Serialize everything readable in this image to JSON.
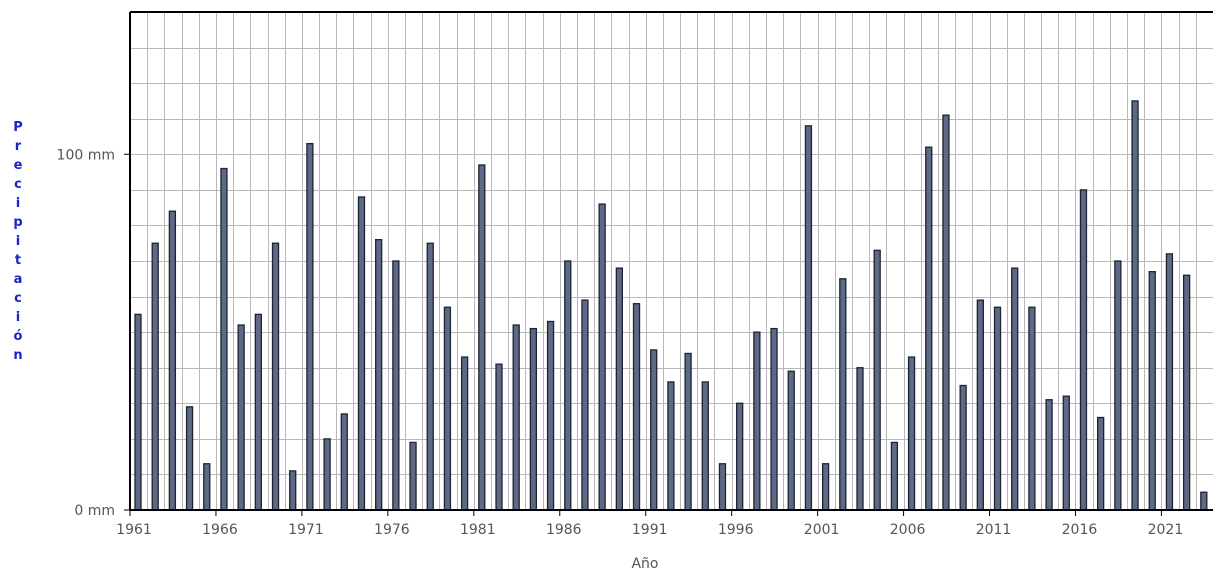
{
  "chart_data": {
    "type": "bar",
    "title": "",
    "xlabel": "Año",
    "ylabel": "Precipitación",
    "unit": "mm",
    "ylim": [
      0,
      140
    ],
    "yticks": [
      {
        "value": 0,
        "label": "0 mm"
      },
      {
        "value": 100,
        "label": "100 mm"
      }
    ],
    "xticks": [
      "1961",
      "1966",
      "1971",
      "1976",
      "1981",
      "1986",
      "1991",
      "1996",
      "2001",
      "2006",
      "2011",
      "2016",
      "2021"
    ],
    "grid": true,
    "legend": "none",
    "colors": {
      "bar_fill": "#5c6a85",
      "bar_stroke": "#1c2433",
      "grid": "#b8b8b8",
      "axis": "#000000",
      "ylabel": "#1a22c8",
      "tick_text": "#555555"
    },
    "x": [
      1961,
      1962,
      1963,
      1964,
      1965,
      1966,
      1967,
      1968,
      1969,
      1970,
      1971,
      1972,
      1973,
      1974,
      1975,
      1976,
      1977,
      1978,
      1979,
      1980,
      1981,
      1982,
      1983,
      1984,
      1985,
      1986,
      1987,
      1988,
      1989,
      1990,
      1991,
      1992,
      1993,
      1994,
      1995,
      1996,
      1997,
      1998,
      1999,
      2000,
      2001,
      2002,
      2003,
      2004,
      2005,
      2006,
      2007,
      2008,
      2009,
      2010,
      2011,
      2012,
      2013,
      2014,
      2015,
      2016,
      2017,
      2018,
      2019,
      2020,
      2021,
      2022,
      2023
    ],
    "values": [
      55,
      75,
      84,
      29,
      13,
      96,
      52,
      55,
      75,
      11,
      103,
      20,
      27,
      88,
      76,
      70,
      19,
      75,
      57,
      43,
      97,
      41,
      52,
      51,
      53,
      70,
      59,
      86,
      68,
      58,
      45,
      36,
      44,
      36,
      13,
      30,
      50,
      51,
      39,
      108,
      13,
      65,
      40,
      73,
      19,
      43,
      102,
      111,
      35,
      59,
      57,
      68,
      57,
      31,
      32,
      90,
      26,
      70,
      115,
      67,
      72,
      66,
      5
    ]
  }
}
